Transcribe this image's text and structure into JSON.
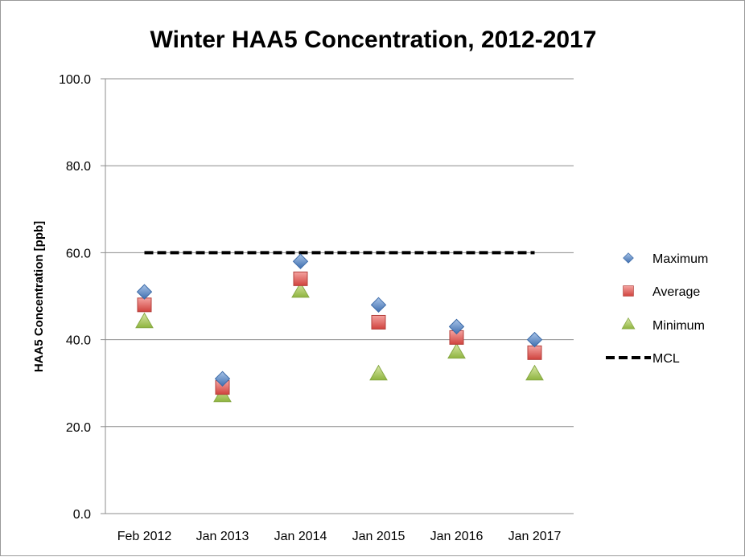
{
  "chart_data": {
    "type": "scatter",
    "title": "Winter HAA5 Concentration, 2012-2017",
    "xlabel": "",
    "ylabel": "HAA5 Concentration [ppb]",
    "categories": [
      "Feb 2012",
      "Jan 2013",
      "Jan 2014",
      "Jan 2015",
      "Jan 2016",
      "Jan 2017"
    ],
    "ylim": [
      0,
      100
    ],
    "yticks": [
      0,
      20,
      40,
      60,
      80,
      100
    ],
    "ytick_labels": [
      "0.0",
      "20.0",
      "40.0",
      "60.0",
      "80.0",
      "100.0"
    ],
    "grid": true,
    "legend_position": "right",
    "series": [
      {
        "name": "Maximum",
        "marker": "diamond",
        "color": "#4f81bd",
        "values": [
          51,
          31,
          58,
          48,
          43,
          40
        ]
      },
      {
        "name": "Average",
        "marker": "square",
        "color": "#c0504d",
        "values": [
          48,
          29,
          54,
          44,
          40.5,
          37
        ]
      },
      {
        "name": "Minimum",
        "marker": "triangle",
        "color": "#9bbb59",
        "values": [
          44,
          27,
          51,
          32,
          37,
          32
        ]
      },
      {
        "name": "MCL",
        "marker": "dashed-line",
        "color": "#000000",
        "values": [
          60,
          60,
          60,
          60,
          60,
          60
        ]
      }
    ]
  }
}
